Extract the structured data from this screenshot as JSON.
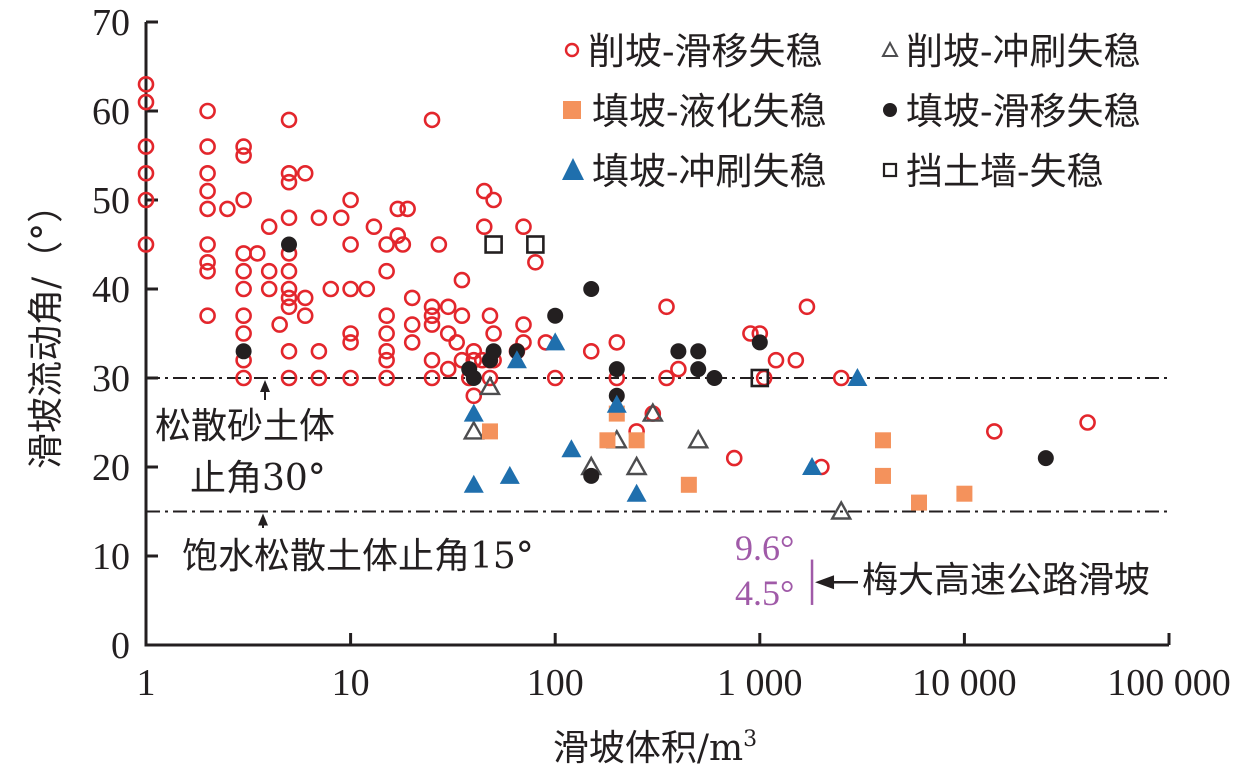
{
  "chart_data": {
    "type": "scatter",
    "title": "",
    "xlabel": "滑坡体积/m³",
    "xlabel_base": "滑坡体积/m",
    "xlabel_sup": "3",
    "ylabel": "滑坡流动角/（°）",
    "xscale": "log",
    "xlim": [
      1,
      100000
    ],
    "ylim": [
      0,
      70
    ],
    "x_ticks": [
      1,
      10,
      100,
      1000,
      10000,
      100000
    ],
    "x_tick_labels": [
      "1",
      "10",
      "100",
      "1 000",
      "10 000",
      "100 000"
    ],
    "y_ticks": [
      0,
      10,
      20,
      30,
      40,
      50,
      60,
      70
    ],
    "y_tick_labels": [
      "0",
      "10",
      "20",
      "30",
      "40",
      "50",
      "60",
      "70"
    ],
    "grid": false,
    "legend_position": "top-right",
    "reference_lines": [
      {
        "y": 30,
        "label_line1": "松散砂土体",
        "label_line2": "止角30°",
        "style": "dash-dot"
      },
      {
        "y": 15,
        "label": "饱水松散土体止角15°",
        "style": "dash-dot"
      }
    ],
    "annotation_range": {
      "x": 1800,
      "y_low": 4.5,
      "y_high": 9.6,
      "label_high": "9.6°",
      "label_low": "4.5°",
      "label": "梅大高速公路滑坡",
      "color": "#a05aa8"
    },
    "series": [
      {
        "name": "削坡-滑移失稳",
        "marker": "circle-open",
        "color": "#e3262c",
        "points": [
          [
            1,
            63
          ],
          [
            1,
            61
          ],
          [
            1,
            56
          ],
          [
            1,
            53
          ],
          [
            1,
            50
          ],
          [
            1,
            45
          ],
          [
            2,
            60
          ],
          [
            2,
            56
          ],
          [
            2,
            53
          ],
          [
            2,
            51
          ],
          [
            2,
            49
          ],
          [
            2,
            45
          ],
          [
            2,
            43
          ],
          [
            2,
            42
          ],
          [
            2,
            37
          ],
          [
            2.5,
            49
          ],
          [
            3,
            56
          ],
          [
            3,
            55
          ],
          [
            3,
            50
          ],
          [
            3,
            44
          ],
          [
            3,
            42
          ],
          [
            3,
            40
          ],
          [
            3,
            37
          ],
          [
            3,
            35
          ],
          [
            3,
            32
          ],
          [
            3,
            30
          ],
          [
            3.5,
            44
          ],
          [
            4,
            47
          ],
          [
            4,
            42
          ],
          [
            4,
            40
          ],
          [
            4.5,
            36
          ],
          [
            5,
            59
          ],
          [
            5,
            53
          ],
          [
            5,
            52
          ],
          [
            5,
            48
          ],
          [
            5,
            44
          ],
          [
            5,
            42
          ],
          [
            5,
            40
          ],
          [
            5,
            39
          ],
          [
            5,
            38
          ],
          [
            5,
            33
          ],
          [
            5,
            30
          ],
          [
            6,
            53
          ],
          [
            6,
            39
          ],
          [
            6,
            37
          ],
          [
            7,
            48
          ],
          [
            7,
            33
          ],
          [
            7,
            30
          ],
          [
            8,
            40
          ],
          [
            9,
            48
          ],
          [
            10,
            50
          ],
          [
            10,
            45
          ],
          [
            10,
            40
          ],
          [
            10,
            35
          ],
          [
            10,
            34
          ],
          [
            10,
            30
          ],
          [
            12,
            40
          ],
          [
            13,
            47
          ],
          [
            15,
            45
          ],
          [
            15,
            42
          ],
          [
            15,
            37
          ],
          [
            15,
            35
          ],
          [
            15,
            33
          ],
          [
            15,
            32
          ],
          [
            15,
            30
          ],
          [
            17,
            49
          ],
          [
            17,
            46
          ],
          [
            18,
            45
          ],
          [
            19,
            49
          ],
          [
            20,
            39
          ],
          [
            20,
            36
          ],
          [
            20,
            34
          ],
          [
            25,
            59
          ],
          [
            25,
            38
          ],
          [
            25,
            37
          ],
          [
            25,
            36
          ],
          [
            25,
            32
          ],
          [
            25,
            30
          ],
          [
            27,
            45
          ],
          [
            30,
            38
          ],
          [
            30,
            35
          ],
          [
            30,
            31
          ],
          [
            33,
            34
          ],
          [
            35,
            41
          ],
          [
            35,
            37
          ],
          [
            35,
            32
          ],
          [
            38,
            30
          ],
          [
            40,
            33
          ],
          [
            40,
            32
          ],
          [
            40,
            28
          ],
          [
            44,
            32
          ],
          [
            45,
            51
          ],
          [
            45,
            47
          ],
          [
            48,
            37
          ],
          [
            48,
            32
          ],
          [
            48,
            30
          ],
          [
            50,
            50
          ],
          [
            50,
            35
          ],
          [
            50,
            32
          ],
          [
            65,
            33
          ],
          [
            70,
            47
          ],
          [
            70,
            36
          ],
          [
            70,
            34
          ],
          [
            80,
            43
          ],
          [
            90,
            34
          ],
          [
            100,
            30
          ],
          [
            150,
            33
          ],
          [
            200,
            34
          ],
          [
            200,
            30
          ],
          [
            250,
            24
          ],
          [
            300,
            26
          ],
          [
            350,
            38
          ],
          [
            350,
            30
          ],
          [
            400,
            31
          ],
          [
            750,
            21
          ],
          [
            900,
            35
          ],
          [
            1000,
            35
          ],
          [
            1050,
            30
          ],
          [
            1200,
            32
          ],
          [
            1500,
            32
          ],
          [
            1700,
            38
          ],
          [
            2000,
            20
          ],
          [
            2500,
            30
          ],
          [
            14000,
            24
          ],
          [
            40000,
            25
          ]
        ]
      },
      {
        "name": "削坡-冲刷失稳",
        "marker": "triangle-open",
        "color": "#4d4d4f",
        "points": [
          [
            40,
            24
          ],
          [
            48,
            29
          ],
          [
            150,
            20
          ],
          [
            200,
            23
          ],
          [
            250,
            20
          ],
          [
            300,
            26
          ],
          [
            500,
            23
          ],
          [
            2500,
            15
          ]
        ]
      },
      {
        "name": "填坡-液化失稳",
        "marker": "square-filled",
        "color": "#f4925c",
        "points": [
          [
            48,
            24
          ],
          [
            180,
            23
          ],
          [
            200,
            26
          ],
          [
            250,
            23
          ],
          [
            450,
            18
          ],
          [
            4000,
            23
          ],
          [
            4000,
            19
          ],
          [
            6000,
            16
          ],
          [
            10000,
            17
          ]
        ]
      },
      {
        "name": "填坡-滑移失稳",
        "marker": "circle-filled",
        "color": "#231f20",
        "points": [
          [
            3,
            33
          ],
          [
            5,
            45
          ],
          [
            38,
            31
          ],
          [
            40,
            30
          ],
          [
            48,
            32
          ],
          [
            50,
            33
          ],
          [
            65,
            33
          ],
          [
            100,
            37
          ],
          [
            150,
            40
          ],
          [
            150,
            19
          ],
          [
            200,
            31
          ],
          [
            200,
            28
          ],
          [
            400,
            33
          ],
          [
            500,
            33
          ],
          [
            500,
            31
          ],
          [
            600,
            30
          ],
          [
            1000,
            34
          ],
          [
            25000,
            21
          ]
        ]
      },
      {
        "name": "填坡-冲刷失稳",
        "marker": "triangle-filled",
        "color": "#1f6fad",
        "points": [
          [
            40,
            26
          ],
          [
            40,
            18
          ],
          [
            60,
            19
          ],
          [
            65,
            32
          ],
          [
            100,
            34
          ],
          [
            120,
            22
          ],
          [
            200,
            27
          ],
          [
            250,
            17
          ],
          [
            1800,
            20
          ],
          [
            3000,
            30
          ]
        ]
      },
      {
        "name": "挡土墙-失稳",
        "marker": "square-open",
        "color": "#231f20",
        "points": [
          [
            50,
            45
          ],
          [
            80,
            45
          ],
          [
            1000,
            30
          ]
        ]
      }
    ]
  }
}
